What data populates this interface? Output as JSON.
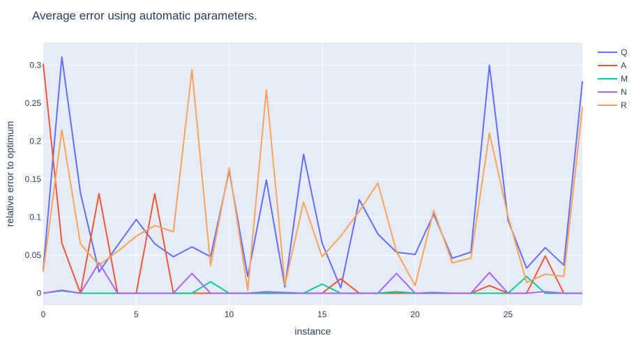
{
  "chart_data": {
    "type": "line",
    "title": "Average error using automatic parameters.",
    "xlabel": "instance",
    "ylabel": "relative error to optimum",
    "xlim": [
      0,
      29
    ],
    "ylim": [
      -0.016,
      0.33
    ],
    "x_ticks": [
      0,
      5,
      10,
      15,
      20,
      25
    ],
    "x_tick_labels": [
      "0",
      "5",
      "10",
      "15",
      "20",
      "25"
    ],
    "y_ticks": [
      0,
      0.05,
      0.1,
      0.15,
      0.2,
      0.25,
      0.3
    ],
    "y_tick_labels": [
      "0",
      "0.05",
      "0.1",
      "0.15",
      "0.2",
      "0.25",
      "0.3"
    ],
    "grid": true,
    "legend_position": "top-right",
    "background": "#e5ecf6",
    "x": [
      0,
      1,
      2,
      3,
      4,
      5,
      6,
      7,
      8,
      9,
      10,
      11,
      12,
      13,
      14,
      15,
      16,
      17,
      18,
      19,
      20,
      21,
      22,
      23,
      24,
      25,
      26,
      27,
      28,
      29
    ],
    "series": [
      {
        "name": "Q",
        "color": "#636efa",
        "values": [
          0.031,
          0.311,
          0.132,
          0.028,
          0.063,
          0.097,
          0.065,
          0.048,
          0.061,
          0.048,
          0.161,
          0.022,
          0.149,
          0.008,
          0.183,
          0.066,
          0.007,
          0.123,
          0.078,
          0.054,
          0.051,
          0.104,
          0.046,
          0.054,
          0.3,
          0.096,
          0.033,
          0.06,
          0.037,
          0.279
        ]
      },
      {
        "name": "A",
        "color": "#ef553b",
        "values": [
          0.302,
          0.066,
          0.0,
          0.131,
          0.0,
          0.0,
          0.131,
          0.0,
          0.0,
          0.0,
          0.0,
          0.0,
          0.0,
          0.0,
          0.0,
          0.0,
          0.019,
          0.0,
          0.0,
          0.0,
          0.0,
          0.0,
          0.0,
          0.0,
          0.01,
          0.0,
          0.0,
          0.049,
          0.0,
          0.0
        ]
      },
      {
        "name": "M",
        "color": "#00cc96",
        "values": [
          0.0,
          0.003,
          0.0,
          0.0,
          0.0,
          0.0,
          0.0,
          0.0,
          0.0,
          0.015,
          0.0,
          0.0,
          0.0,
          0.0,
          0.0,
          0.012,
          0.0,
          0.0,
          0.0,
          0.002,
          0.0,
          0.0,
          0.0,
          0.0,
          0.0,
          0.0,
          0.022,
          0.0,
          0.0,
          0.0
        ]
      },
      {
        "name": "N",
        "color": "#ab63fa",
        "values": [
          0.0,
          0.004,
          0.0,
          0.04,
          0.0,
          0.0,
          0.0,
          0.0,
          0.026,
          0.0,
          0.0,
          0.0,
          0.002,
          0.001,
          0.0,
          0.0,
          0.0,
          0.0,
          0.0,
          0.026,
          0.0,
          0.001,
          0.0,
          0.0,
          0.027,
          0.0,
          0.0,
          0.002,
          0.0,
          0.0
        ]
      },
      {
        "name": "R",
        "color": "#ffa15a",
        "values": [
          0.028,
          0.215,
          0.065,
          0.037,
          0.055,
          0.075,
          0.089,
          0.081,
          0.294,
          0.036,
          0.165,
          0.004,
          0.268,
          0.011,
          0.12,
          0.048,
          0.075,
          0.108,
          0.145,
          0.055,
          0.01,
          0.109,
          0.04,
          0.046,
          0.211,
          0.101,
          0.014,
          0.025,
          0.022,
          0.245
        ]
      }
    ]
  }
}
